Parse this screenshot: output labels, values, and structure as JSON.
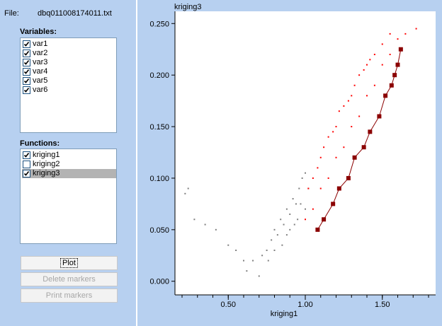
{
  "file": {
    "label": "File:",
    "name": "dbq011008174011.txt"
  },
  "variables": {
    "title": "Variables:",
    "items": [
      {
        "label": "var1",
        "checked": true
      },
      {
        "label": "var2",
        "checked": true
      },
      {
        "label": "var3",
        "checked": true
      },
      {
        "label": "var4",
        "checked": true
      },
      {
        "label": "var5",
        "checked": true
      },
      {
        "label": "var6",
        "checked": true
      }
    ]
  },
  "functions": {
    "title": "Functions:",
    "items": [
      {
        "label": "kriging1",
        "checked": true,
        "selected": false
      },
      {
        "label": "kriging2",
        "checked": false,
        "selected": false
      },
      {
        "label": "kriging3",
        "checked": true,
        "selected": true
      }
    ]
  },
  "buttons": {
    "plot": "Plot",
    "delete_markers": "Delete markers",
    "print_markers": "Print markers"
  },
  "chart_data": {
    "type": "scatter",
    "title": "kriging3",
    "xlabel": "kriging1",
    "ylabel": "",
    "xlim": [
      0.2,
      1.8
    ],
    "ylim": [
      -0.005,
      0.255
    ],
    "xticks": [
      "0.50",
      "1.00",
      "1.50"
    ],
    "yticks": [
      "0.000",
      "0.050",
      "0.100",
      "0.150",
      "0.200",
      "0.250"
    ],
    "grid": false,
    "colors": {
      "gray": "#7f7f7f",
      "red": "#ff0000",
      "dark": "#8b0000"
    },
    "series": [
      {
        "points": [
          [
            0.22,
            0.085
          ],
          [
            0.24,
            0.09
          ],
          [
            0.28,
            0.06
          ],
          [
            0.35,
            0.055
          ],
          [
            0.42,
            0.05
          ],
          [
            0.5,
            0.035
          ],
          [
            0.55,
            0.03
          ],
          [
            0.6,
            0.02
          ],
          [
            0.62,
            0.01
          ],
          [
            0.66,
            0.02
          ],
          [
            0.7,
            0.005
          ],
          [
            0.72,
            0.025
          ],
          [
            0.75,
            0.03
          ],
          [
            0.78,
            0.04
          ],
          [
            0.8,
            0.05
          ],
          [
            0.82,
            0.045
          ],
          [
            0.84,
            0.06
          ],
          [
            0.86,
            0.055
          ],
          [
            0.88,
            0.07
          ],
          [
            0.9,
            0.065
          ],
          [
            0.92,
            0.08
          ],
          [
            0.94,
            0.075
          ],
          [
            0.96,
            0.09
          ],
          [
            0.98,
            0.1
          ],
          [
            1.0,
            0.105
          ],
          [
            0.85,
            0.035
          ],
          [
            0.9,
            0.05
          ],
          [
            0.95,
            0.06
          ],
          [
            1.0,
            0.07
          ],
          [
            0.76,
            0.02
          ],
          [
            0.8,
            0.03
          ],
          [
            0.88,
            0.045
          ],
          [
            0.93,
            0.055
          ],
          [
            0.97,
            0.075
          ],
          [
            1.02,
            0.09
          ]
        ]
      },
      {
        "points": [
          [
            1.0,
            0.06
          ],
          [
            1.05,
            0.07
          ],
          [
            1.1,
            0.09
          ],
          [
            1.15,
            0.1
          ],
          [
            1.2,
            0.12
          ],
          [
            1.25,
            0.13
          ],
          [
            1.3,
            0.15
          ],
          [
            1.35,
            0.16
          ],
          [
            1.4,
            0.18
          ],
          [
            1.45,
            0.19
          ],
          [
            1.5,
            0.21
          ],
          [
            1.55,
            0.22
          ],
          [
            1.6,
            0.235
          ],
          [
            1.65,
            0.24
          ],
          [
            1.72,
            0.245
          ],
          [
            1.05,
            0.1
          ],
          [
            1.1,
            0.12
          ],
          [
            1.15,
            0.14
          ],
          [
            1.2,
            0.15
          ],
          [
            1.25,
            0.17
          ],
          [
            1.3,
            0.18
          ],
          [
            1.35,
            0.2
          ],
          [
            1.4,
            0.21
          ],
          [
            1.45,
            0.22
          ],
          [
            1.5,
            0.23
          ],
          [
            1.55,
            0.24
          ],
          [
            1.02,
            0.09
          ],
          [
            1.08,
            0.11
          ],
          [
            1.12,
            0.13
          ],
          [
            1.18,
            0.145
          ],
          [
            1.22,
            0.165
          ],
          [
            1.28,
            0.175
          ],
          [
            1.32,
            0.19
          ],
          [
            1.38,
            0.205
          ],
          [
            1.42,
            0.215
          ]
        ]
      },
      {
        "points": [
          [
            1.08,
            0.05
          ],
          [
            1.12,
            0.06
          ],
          [
            1.18,
            0.075
          ],
          [
            1.22,
            0.09
          ],
          [
            1.28,
            0.1
          ],
          [
            1.32,
            0.12
          ],
          [
            1.38,
            0.13
          ],
          [
            1.42,
            0.145
          ],
          [
            1.48,
            0.16
          ],
          [
            1.52,
            0.18
          ],
          [
            1.56,
            0.19
          ],
          [
            1.6,
            0.21
          ],
          [
            1.62,
            0.225
          ],
          [
            1.58,
            0.2
          ]
        ]
      }
    ]
  }
}
